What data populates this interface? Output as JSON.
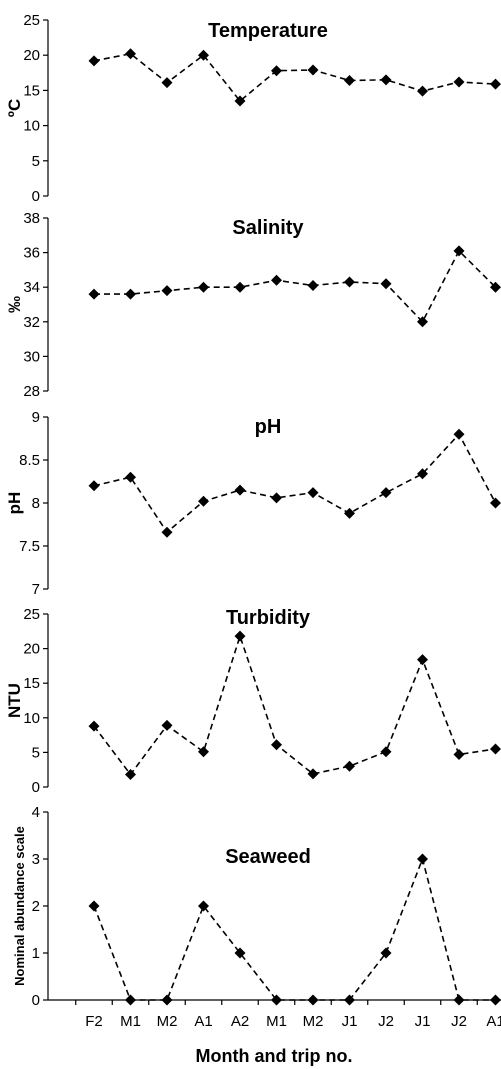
{
  "x_axis": {
    "categories": [
      "F2",
      "M1",
      "M2",
      "A1",
      "A2",
      "M1",
      "M2",
      "J1",
      "J2",
      "J1",
      "J2",
      "A1"
    ],
    "title": "Month and trip no."
  },
  "chart_data": [
    {
      "type": "line",
      "title": "Temperature",
      "ylabel": "ºC",
      "ylim": [
        0,
        25
      ],
      "yticks": [
        0,
        5,
        10,
        15,
        20,
        25
      ],
      "ytick_labels": [
        "0",
        "5",
        "10",
        "15",
        "20",
        "25"
      ],
      "categories": [
        "F2",
        "M1",
        "M2",
        "A1",
        "A2",
        "M1",
        "M2",
        "J1",
        "J2",
        "J1",
        "J2",
        "A1"
      ],
      "values": [
        19.2,
        20.2,
        16.1,
        20.0,
        13.5,
        17.8,
        17.9,
        16.4,
        16.5,
        14.9,
        16.2,
        15.9
      ],
      "color": "#000000",
      "marker": "diamond",
      "line_style": "dashed"
    },
    {
      "type": "line",
      "title": "Salinity",
      "ylabel": "‰",
      "ylim": [
        28,
        38
      ],
      "yticks": [
        28,
        30,
        32,
        34,
        36,
        38
      ],
      "ytick_labels": [
        "28",
        "30",
        "32",
        "34",
        "36",
        "38"
      ],
      "categories": [
        "F2",
        "M1",
        "M2",
        "A1",
        "A2",
        "M1",
        "M2",
        "J1",
        "J2",
        "J1",
        "J2",
        "A1"
      ],
      "values": [
        33.6,
        33.6,
        33.8,
        34.0,
        34.0,
        34.4,
        34.1,
        34.3,
        34.2,
        32.0,
        36.1,
        34.0
      ],
      "color": "#000000",
      "marker": "diamond",
      "line_style": "dashed"
    },
    {
      "type": "line",
      "title": "pH",
      "ylabel": "pH",
      "ylim": [
        7,
        9
      ],
      "yticks": [
        7,
        7.5,
        8,
        8.5,
        9
      ],
      "ytick_labels": [
        "7",
        "7.5",
        "8",
        "8.5",
        "9"
      ],
      "categories": [
        "F2",
        "M1",
        "M2",
        "A1",
        "A2",
        "M1",
        "M2",
        "J1",
        "J2",
        "J1",
        "J2",
        "A1"
      ],
      "values": [
        8.2,
        8.3,
        7.66,
        8.02,
        8.15,
        8.06,
        8.12,
        7.88,
        8.12,
        8.34,
        8.8,
        8.0
      ],
      "color": "#000000",
      "marker": "diamond",
      "line_style": "dashed"
    },
    {
      "type": "line",
      "title": "Turbidity",
      "ylabel": "NTU",
      "ylim": [
        0,
        25
      ],
      "yticks": [
        0,
        5,
        10,
        15,
        20,
        25
      ],
      "ytick_labels": [
        "0",
        "5",
        "10",
        "15",
        "20",
        "25"
      ],
      "categories": [
        "F2",
        "M1",
        "M2",
        "A1",
        "A2",
        "M1",
        "M2",
        "J1",
        "J2",
        "J1",
        "J2",
        "A1"
      ],
      "values": [
        8.8,
        1.8,
        8.9,
        5.1,
        21.8,
        6.1,
        1.9,
        3.0,
        5.1,
        18.4,
        4.7,
        5.5
      ],
      "color": "#000000",
      "marker": "diamond",
      "line_style": "dashed"
    },
    {
      "type": "line",
      "title": "Seaweed",
      "ylabel": "Nominal abundance scale",
      "ylim": [
        0,
        4
      ],
      "yticks": [
        0,
        1,
        2,
        3,
        4
      ],
      "ytick_labels": [
        "0",
        "1",
        "2",
        "3",
        "4"
      ],
      "categories": [
        "F2",
        "M1",
        "M2",
        "A1",
        "A2",
        "M1",
        "M2",
        "J1",
        "J2",
        "J1",
        "J2",
        "A1"
      ],
      "values": [
        2,
        0,
        0,
        2,
        1,
        0,
        0,
        0,
        1,
        3,
        0,
        0
      ],
      "color": "#000000",
      "marker": "diamond",
      "line_style": "dashed"
    }
  ]
}
